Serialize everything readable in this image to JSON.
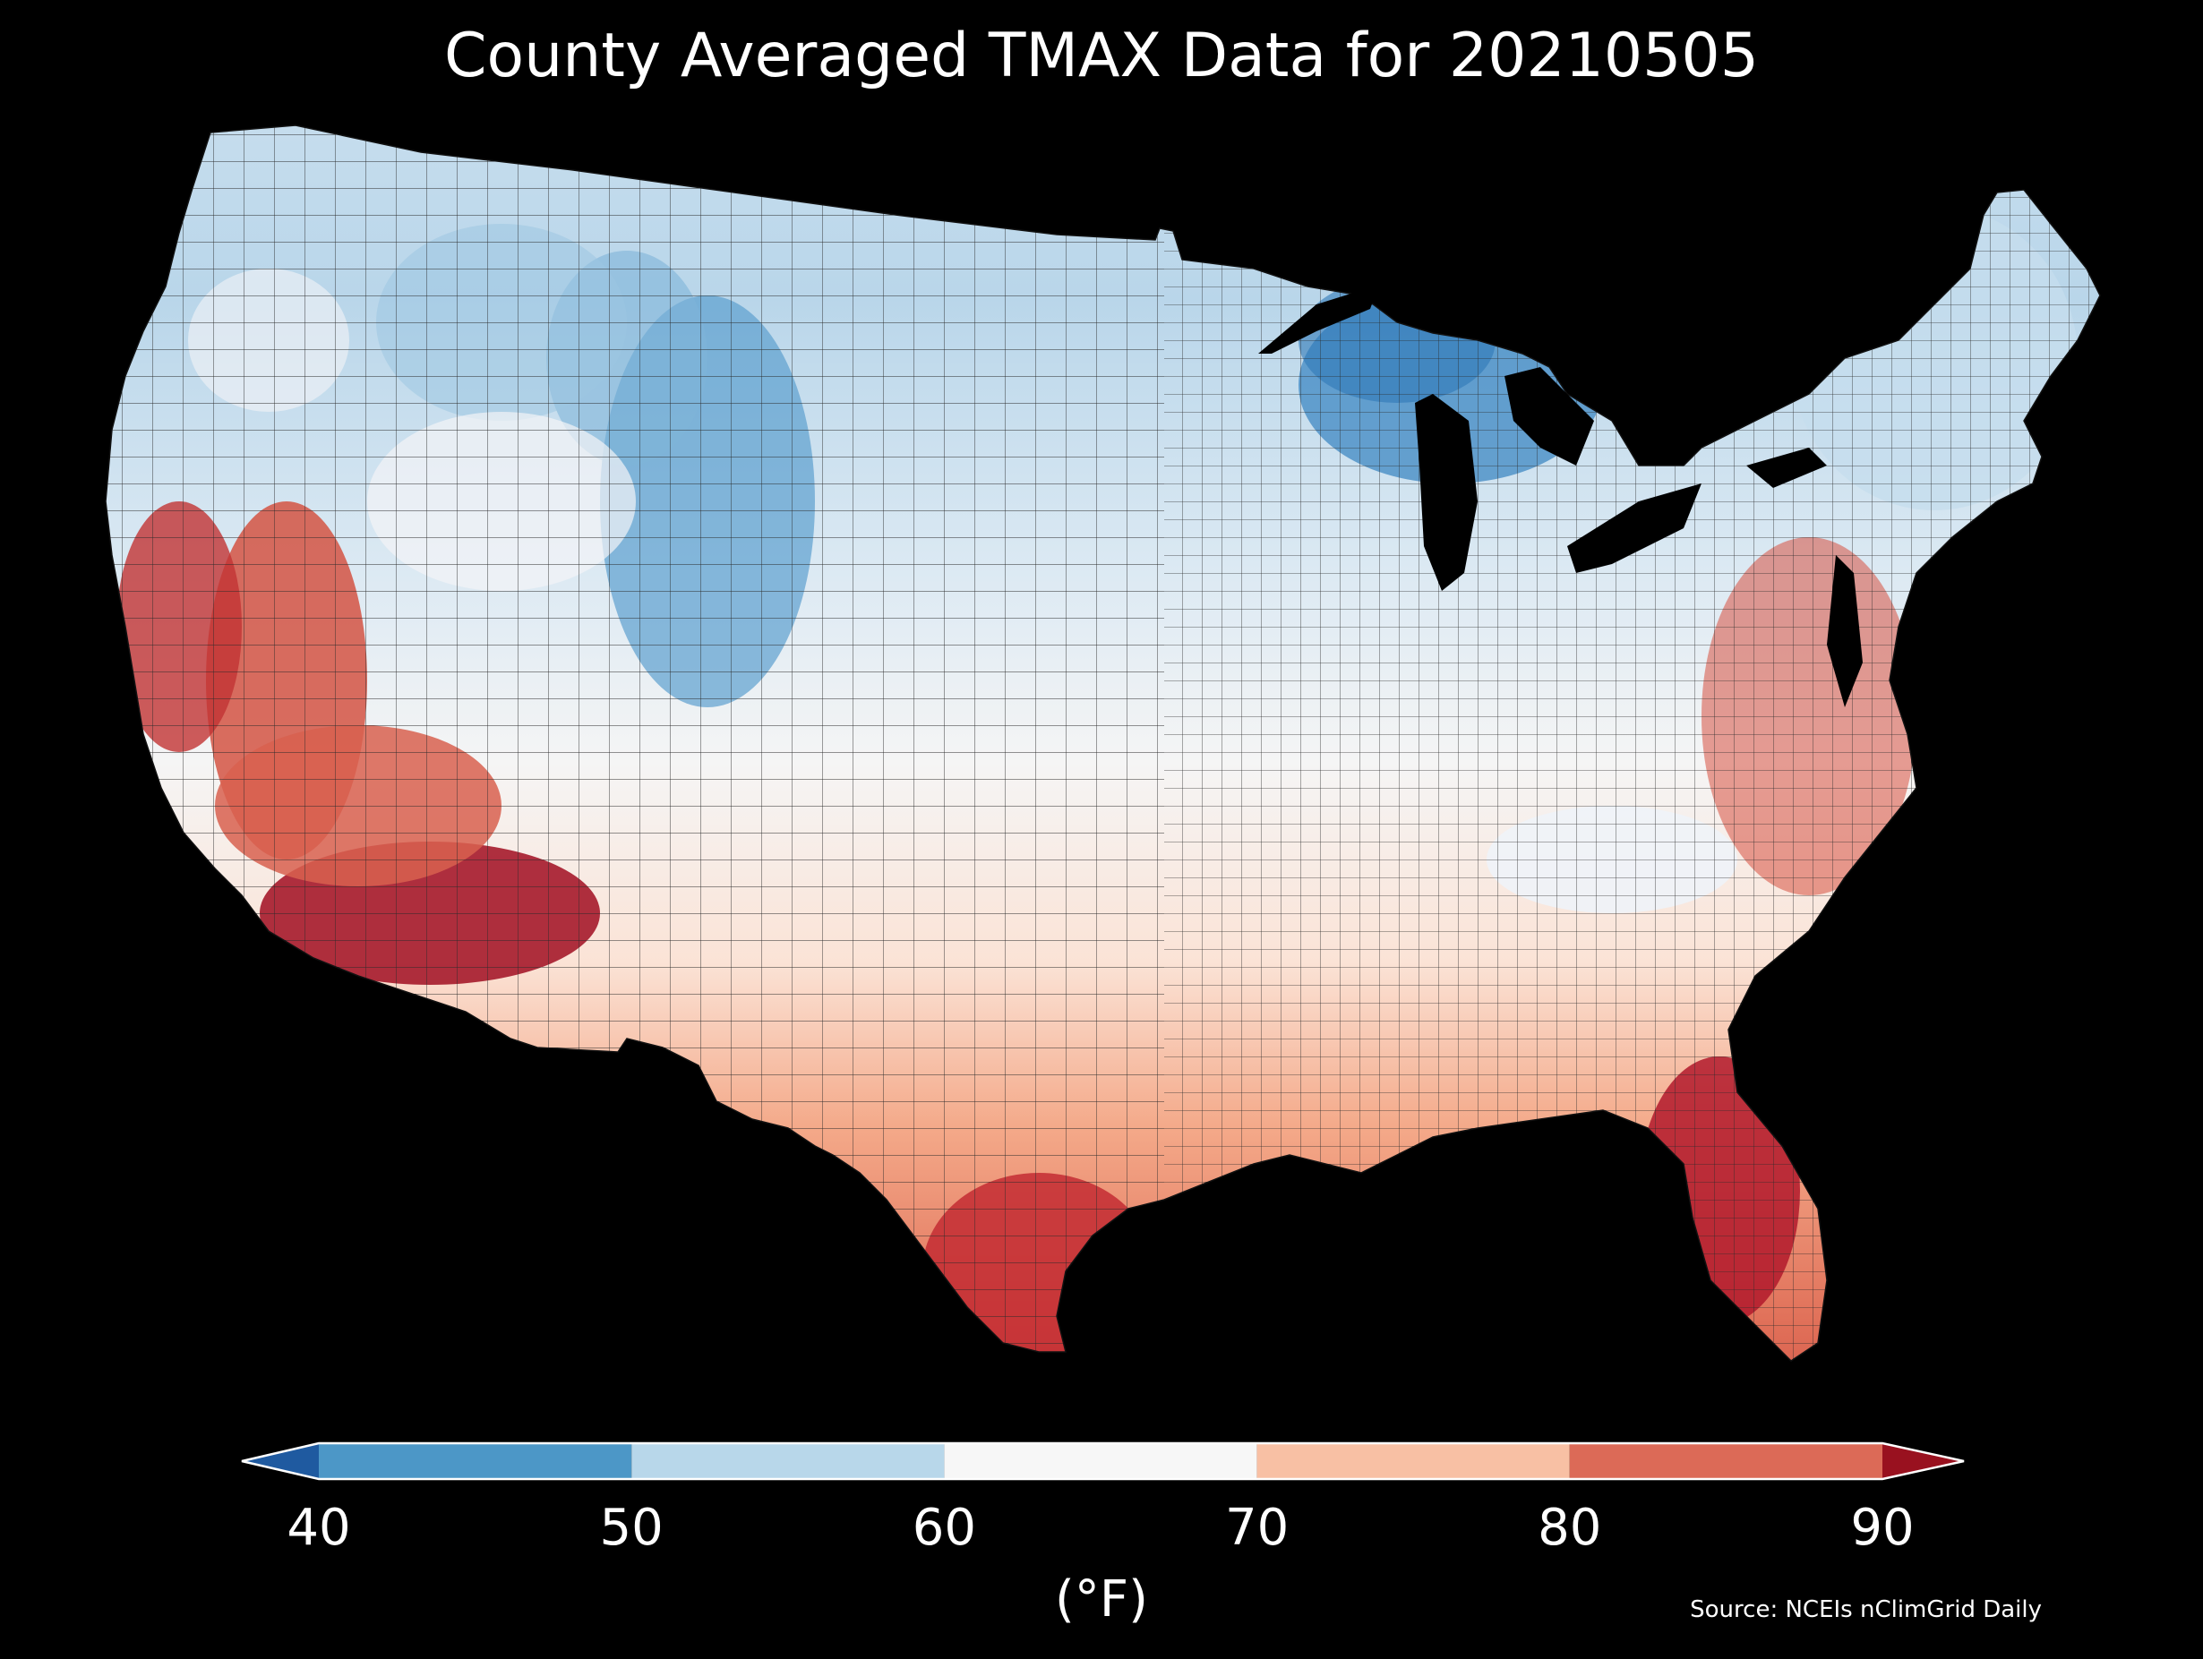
{
  "title": "County Averaged TMAX Data for 20210505",
  "source": "Source: NCEIs nClimGrid Daily",
  "colorbar": {
    "unit_label": "(°F)",
    "ticks": [
      "40",
      "50",
      "60",
      "70",
      "80",
      "90"
    ],
    "bins": [
      {
        "from": 40,
        "to": 50,
        "color": "#4c97c7"
      },
      {
        "from": 50,
        "to": 60,
        "color": "#b8d7ea"
      },
      {
        "from": 60,
        "to": 70,
        "color": "#f7f7f7"
      },
      {
        "from": 70,
        "to": 80,
        "color": "#f8c0a4"
      },
      {
        "from": 80,
        "to": 90,
        "color": "#dc6a57"
      }
    ],
    "under_color": "#1f5aa0",
    "over_color": "#99111f",
    "extend": "both"
  },
  "colors": {
    "background": "#000000",
    "county_border": "#222222"
  }
}
